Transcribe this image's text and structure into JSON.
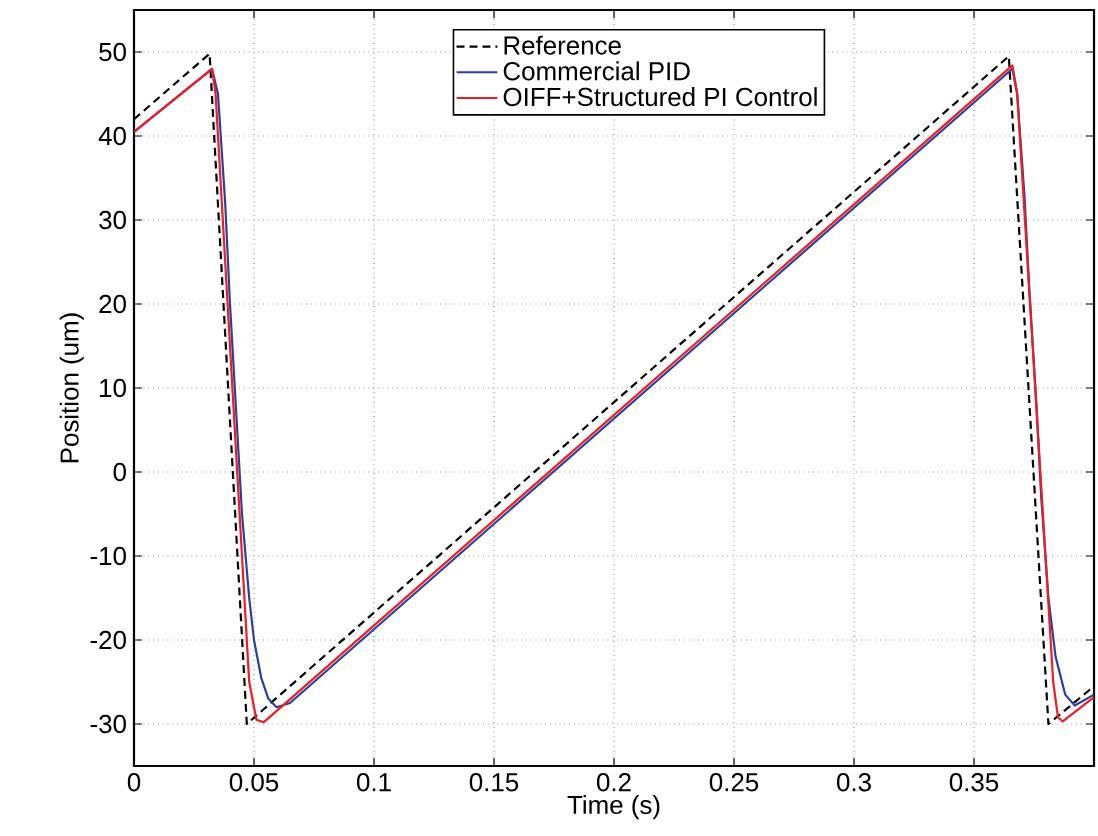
{
  "chart_data": {
    "type": "line",
    "xlabel": "Time (s)",
    "ylabel": "Position (um)",
    "xlim": [
      0,
      0.4
    ],
    "ylim": [
      -35,
      55
    ],
    "xticks": [
      0,
      0.05,
      0.1,
      0.15,
      0.2,
      0.25,
      0.3,
      0.35
    ],
    "yticks": [
      -30,
      -20,
      -10,
      0,
      10,
      20,
      30,
      40,
      50
    ],
    "grid": true,
    "legend": "top right",
    "series": [
      {
        "name": "Reference",
        "color": "#000000",
        "line_style": "dashed",
        "x": [
          0,
          0.0315,
          0.047,
          0.3645,
          0.381,
          0.4
        ],
        "values": [
          42,
          49.8,
          -30,
          49.5,
          -30,
          -25.5
        ]
      },
      {
        "name": "Commercial PID",
        "color": "#2b3fa0",
        "line_style": "solid",
        "x": [
          0,
          0.0325,
          0.035,
          0.038,
          0.04,
          0.043,
          0.045,
          0.048,
          0.05,
          0.053,
          0.056,
          0.0594,
          0.065,
          0.366,
          0.368,
          0.371,
          0.373,
          0.376,
          0.378,
          0.381,
          0.384,
          0.388,
          0.392,
          0.4
        ],
        "values": [
          40.5,
          48,
          45,
          32,
          20,
          5,
          -5,
          -15,
          -20,
          -24.5,
          -27,
          -28,
          -27.5,
          48,
          45,
          33,
          22,
          8,
          -3,
          -15,
          -22,
          -26.5,
          -27.8,
          -26.5
        ]
      },
      {
        "name": "OIFF+Structured PI Control",
        "color": "#ee1c24",
        "line_style": "solid",
        "x": [
          0,
          0.0325,
          0.034,
          0.048,
          0.051,
          0.054,
          0.366,
          0.368,
          0.383,
          0.385,
          0.387,
          0.4
        ],
        "values": [
          40.5,
          48,
          45,
          -25,
          -29.5,
          -29.8,
          48.4,
          45,
          -25,
          -29.2,
          -29.7,
          -26.8
        ]
      }
    ]
  }
}
